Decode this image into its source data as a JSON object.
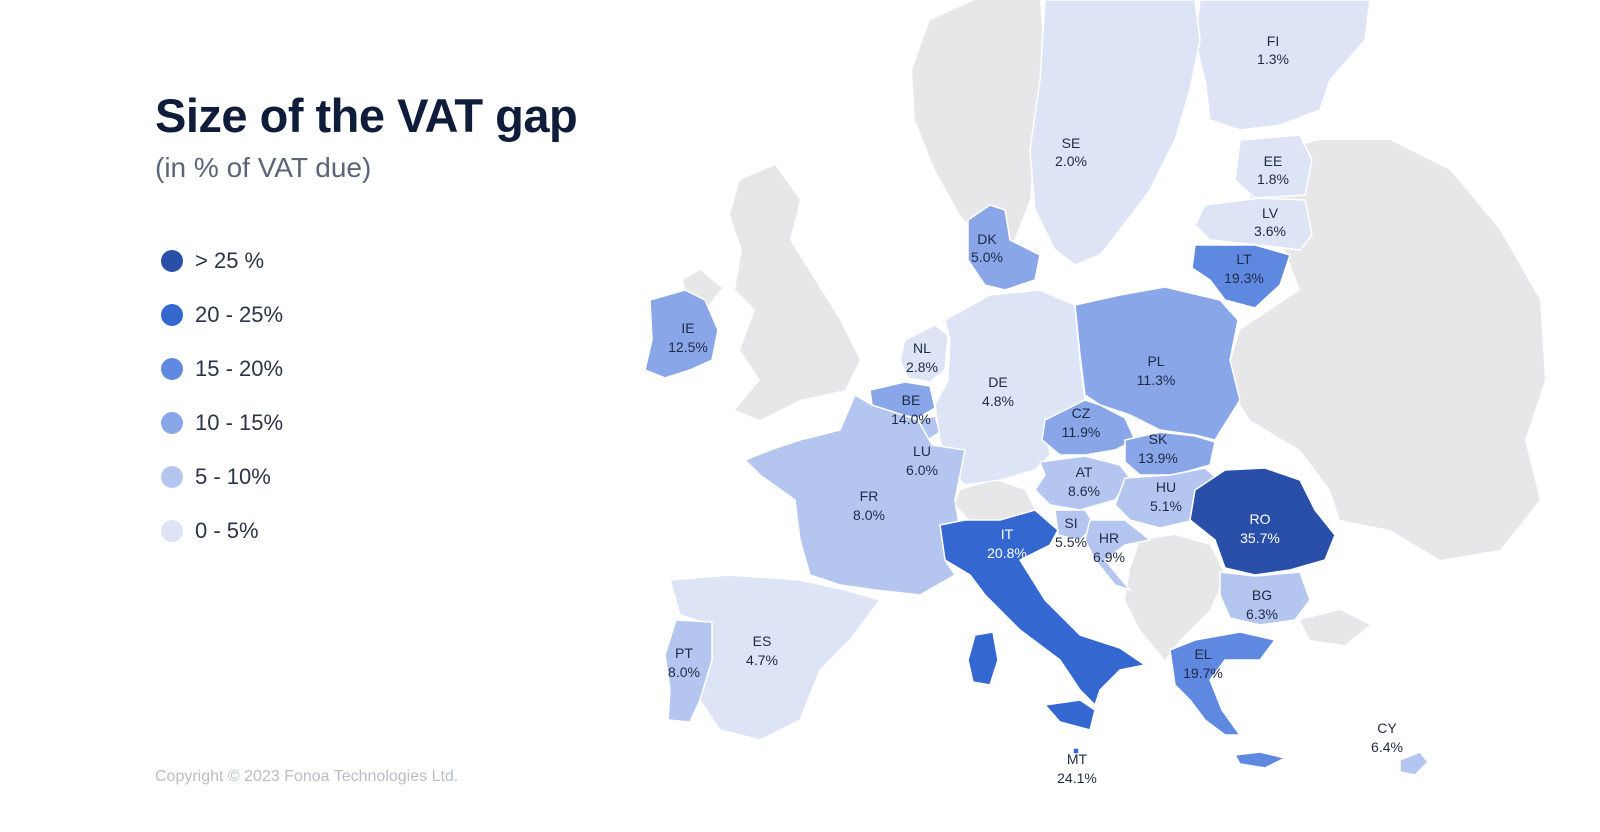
{
  "title": "Size of the VAT gap",
  "subtitle": "(in % of VAT due)",
  "copyright": "Copyright © 2023 Fonoa Technologies Ltd.",
  "colors": {
    "gt25": "#2a4fa8",
    "b20_25": "#3467cf",
    "b15_20": "#5f88e0",
    "b10_15": "#88a6e8",
    "b5_10": "#b4c6f0",
    "b0_5": "#dde4f6",
    "non_eu": "#e7e7e9"
  },
  "legend": [
    {
      "label": "> 25 %",
      "color": "#2a4fa8"
    },
    {
      "label": "20 - 25%",
      "color": "#3467cf"
    },
    {
      "label": "15 - 20%",
      "color": "#5f88e0"
    },
    {
      "label": "10 - 15%",
      "color": "#88a6e8"
    },
    {
      "label": "5 - 10%",
      "color": "#b4c6f0"
    },
    {
      "label": "0 - 5%",
      "color": "#dde4f6"
    }
  ],
  "countries": {
    "FI": {
      "code": "FI",
      "value": "1.3%"
    },
    "SE": {
      "code": "SE",
      "value": "2.0%"
    },
    "EE": {
      "code": "EE",
      "value": "1.8%"
    },
    "LV": {
      "code": "LV",
      "value": "3.6%"
    },
    "LT": {
      "code": "LT",
      "value": "19.3%"
    },
    "DK": {
      "code": "DK",
      "value": "5.0%"
    },
    "IE": {
      "code": "IE",
      "value": "12.5%"
    },
    "NL": {
      "code": "NL",
      "value": "2.8%"
    },
    "DE": {
      "code": "DE",
      "value": "4.8%"
    },
    "PL": {
      "code": "PL",
      "value": "11.3%"
    },
    "BE": {
      "code": "BE",
      "value": "14.0%"
    },
    "CZ": {
      "code": "CZ",
      "value": "11.9%"
    },
    "SK": {
      "code": "SK",
      "value": "13.9%"
    },
    "LU": {
      "code": "LU",
      "value": "6.0%"
    },
    "AT": {
      "code": "AT",
      "value": "8.6%"
    },
    "HU": {
      "code": "HU",
      "value": "5.1%"
    },
    "FR": {
      "code": "FR",
      "value": "8.0%"
    },
    "RO": {
      "code": "RO",
      "value": "35.7%"
    },
    "IT": {
      "code": "IT",
      "value": "20.8%"
    },
    "SI": {
      "code": "SI",
      "value": "5.5%"
    },
    "HR": {
      "code": "HR",
      "value": "6.9%"
    },
    "BG": {
      "code": "BG",
      "value": "6.3%"
    },
    "ES": {
      "code": "ES",
      "value": "4.7%"
    },
    "PT": {
      "code": "PT",
      "value": "8.0%"
    },
    "EL": {
      "code": "EL",
      "value": "19.7%"
    },
    "CY": {
      "code": "CY",
      "value": "6.4%"
    },
    "MT": {
      "code": "MT",
      "value": "24.1%"
    }
  }
}
